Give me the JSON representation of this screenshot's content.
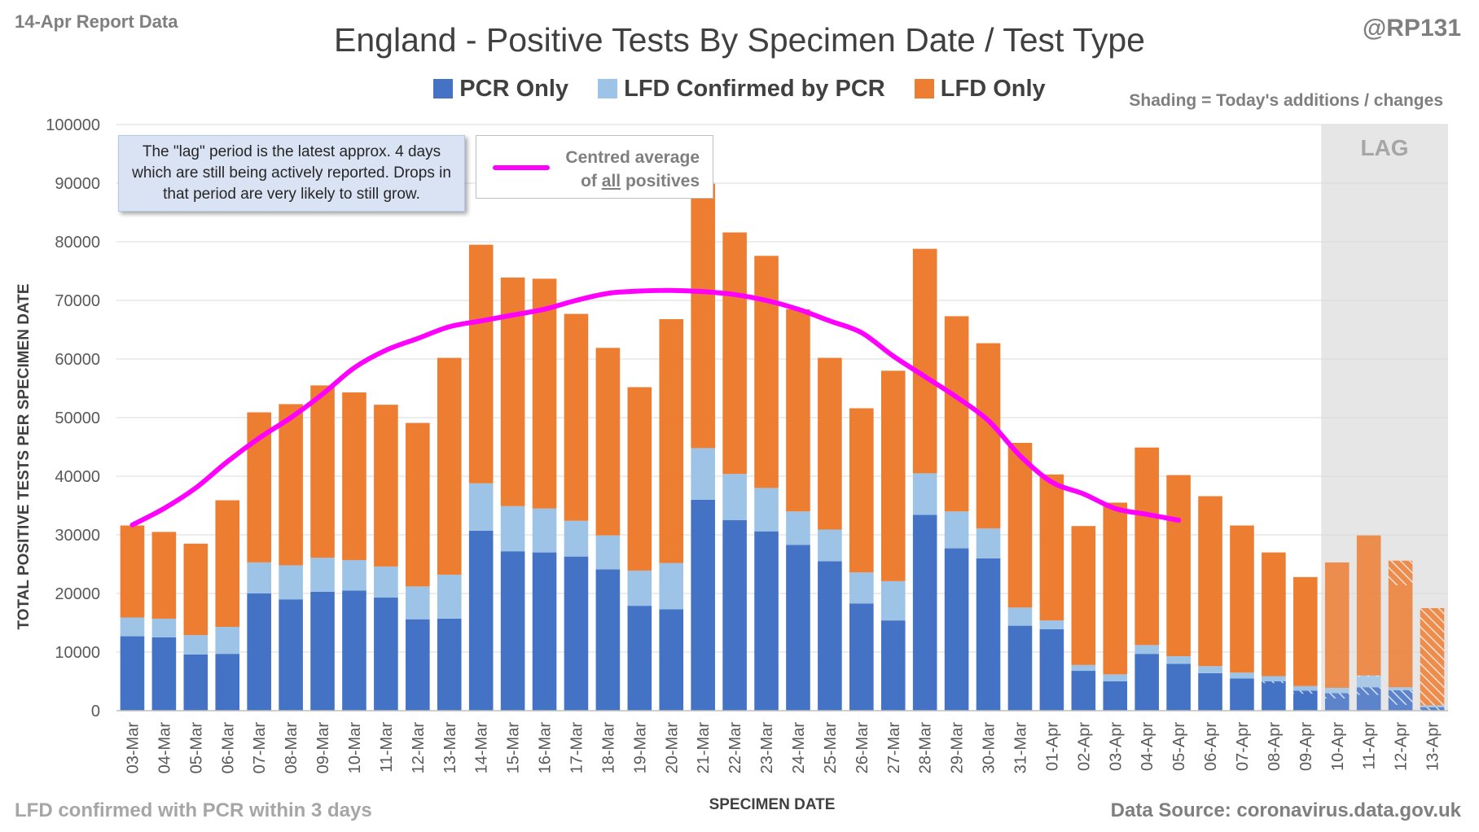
{
  "header": {
    "top_left_note": "14-Apr Report Data",
    "credit": "@RP131",
    "shading_note": "Shading = Today's additions / changes"
  },
  "footer": {
    "left_note": "LFD confirmed with PCR within 3 days",
    "data_source": "Data Source: coronavirus.data.gov.uk"
  },
  "annotations": {
    "lag_note": "The \"lag\" period is the latest approx. 4 days which are still being actively reported. Drops in that period are very likely to still grow.",
    "lag_label": "LAG",
    "avg_legend_line1": "Centred average",
    "avg_legend_line2_pre": "of ",
    "avg_legend_line2_underlined": "all",
    "avg_legend_line2_post": " positives"
  },
  "colors": {
    "pcr": "#4472c4",
    "lfd_confirmed": "#9dc3e6",
    "lfd_only": "#ed7d31",
    "average_line": "#ff00ff",
    "lag_shading": "#e7e6e6",
    "gridline": "#d9d9d9"
  },
  "chart_data": {
    "type": "bar",
    "stacked": true,
    "title": "England - Positive Tests By Specimen Date / Test Type",
    "xlabel": "SPECIMEN DATE",
    "ylabel": "TOTAL POSITIVE TESTS PER SPECIMEN DATE",
    "ylim": [
      0,
      100000
    ],
    "yticks": [
      0,
      10000,
      20000,
      30000,
      40000,
      50000,
      60000,
      70000,
      80000,
      90000,
      100000
    ],
    "grid": true,
    "legend_position": "top",
    "categories": [
      "03-Mar",
      "04-Mar",
      "05-Mar",
      "06-Mar",
      "07-Mar",
      "08-Mar",
      "09-Mar",
      "10-Mar",
      "11-Mar",
      "12-Mar",
      "13-Mar",
      "14-Mar",
      "15-Mar",
      "16-Mar",
      "17-Mar",
      "18-Mar",
      "19-Mar",
      "20-Mar",
      "21-Mar",
      "22-Mar",
      "23-Mar",
      "24-Mar",
      "25-Mar",
      "26-Mar",
      "27-Mar",
      "28-Mar",
      "29-Mar",
      "30-Mar",
      "31-Mar",
      "01-Apr",
      "02-Apr",
      "03-Apr",
      "04-Apr",
      "05-Apr",
      "06-Apr",
      "07-Apr",
      "08-Apr",
      "09-Apr",
      "10-Apr",
      "11-Apr",
      "12-Apr",
      "13-Apr"
    ],
    "series": [
      {
        "name": "PCR Only",
        "color": "#4472c4",
        "values": [
          12700,
          12500,
          9600,
          9700,
          20000,
          19000,
          20300,
          20500,
          19300,
          15600,
          15700,
          30700,
          27200,
          27000,
          26300,
          24100,
          17900,
          17300,
          36000,
          32500,
          30600,
          28300,
          25500,
          18300,
          15400,
          33400,
          27700,
          26000,
          14500,
          13900,
          6800,
          5000,
          9700,
          8000,
          6400,
          5500,
          5000,
          3400,
          3000,
          4000,
          3500,
          600
        ]
      },
      {
        "name": "LFD Confirmed by PCR",
        "color": "#9dc3e6",
        "values": [
          3200,
          3200,
          3300,
          4600,
          5300,
          5800,
          5800,
          5200,
          5300,
          5600,
          7500,
          8100,
          7700,
          7500,
          6100,
          5800,
          6000,
          7900,
          8800,
          7900,
          7400,
          5700,
          5400,
          5300,
          6700,
          7100,
          6300,
          5100,
          3100,
          1500,
          1000,
          1200,
          1500,
          1300,
          1200,
          1000,
          900,
          800,
          900,
          2000,
          500,
          300
        ]
      },
      {
        "name": "LFD Only",
        "color": "#ed7d31",
        "values": [
          15700,
          14800,
          15600,
          21600,
          25600,
          27500,
          29400,
          28600,
          27600,
          27900,
          37000,
          40700,
          39000,
          39200,
          35300,
          32000,
          31300,
          41600,
          45100,
          41200,
          39600,
          34500,
          29300,
          28000,
          35900,
          38300,
          33300,
          31600,
          28100,
          24900,
          23700,
          29300,
          33700,
          30900,
          29000,
          25100,
          21100,
          18600,
          21400,
          23900,
          21600,
          16600
        ]
      },
      {
        "name": "Centred average of all positives",
        "color": "#ff00ff",
        "type": "line",
        "values": [
          31700,
          34500,
          38000,
          42500,
          46500,
          50000,
          54000,
          58500,
          61500,
          63500,
          65500,
          66500,
          67500,
          68500,
          70000,
          71200,
          71600,
          71700,
          71500,
          71000,
          70000,
          68500,
          66500,
          64500,
          60500,
          57000,
          53500,
          49500,
          43500,
          39000,
          37000,
          34500,
          33500,
          32500,
          null,
          null,
          null,
          null,
          null,
          null,
          null,
          null
        ]
      }
    ],
    "lag_period": [
      "10-Apr",
      "11-Apr",
      "12-Apr",
      "13-Apr"
    ],
    "todays_additions": {
      "description_ref": "header.shading_note",
      "hatched_categories": [
        "08-Apr",
        "09-Apr",
        "10-Apr",
        "11-Apr",
        "12-Apr",
        "13-Apr"
      ],
      "pcr": [
        300,
        500,
        900,
        1300,
        2500,
        600
      ],
      "lfd_confirmed": [
        0,
        0,
        0,
        200,
        0,
        0
      ],
      "lfd_only": [
        0,
        0,
        0,
        0,
        4200,
        16600
      ]
    }
  }
}
